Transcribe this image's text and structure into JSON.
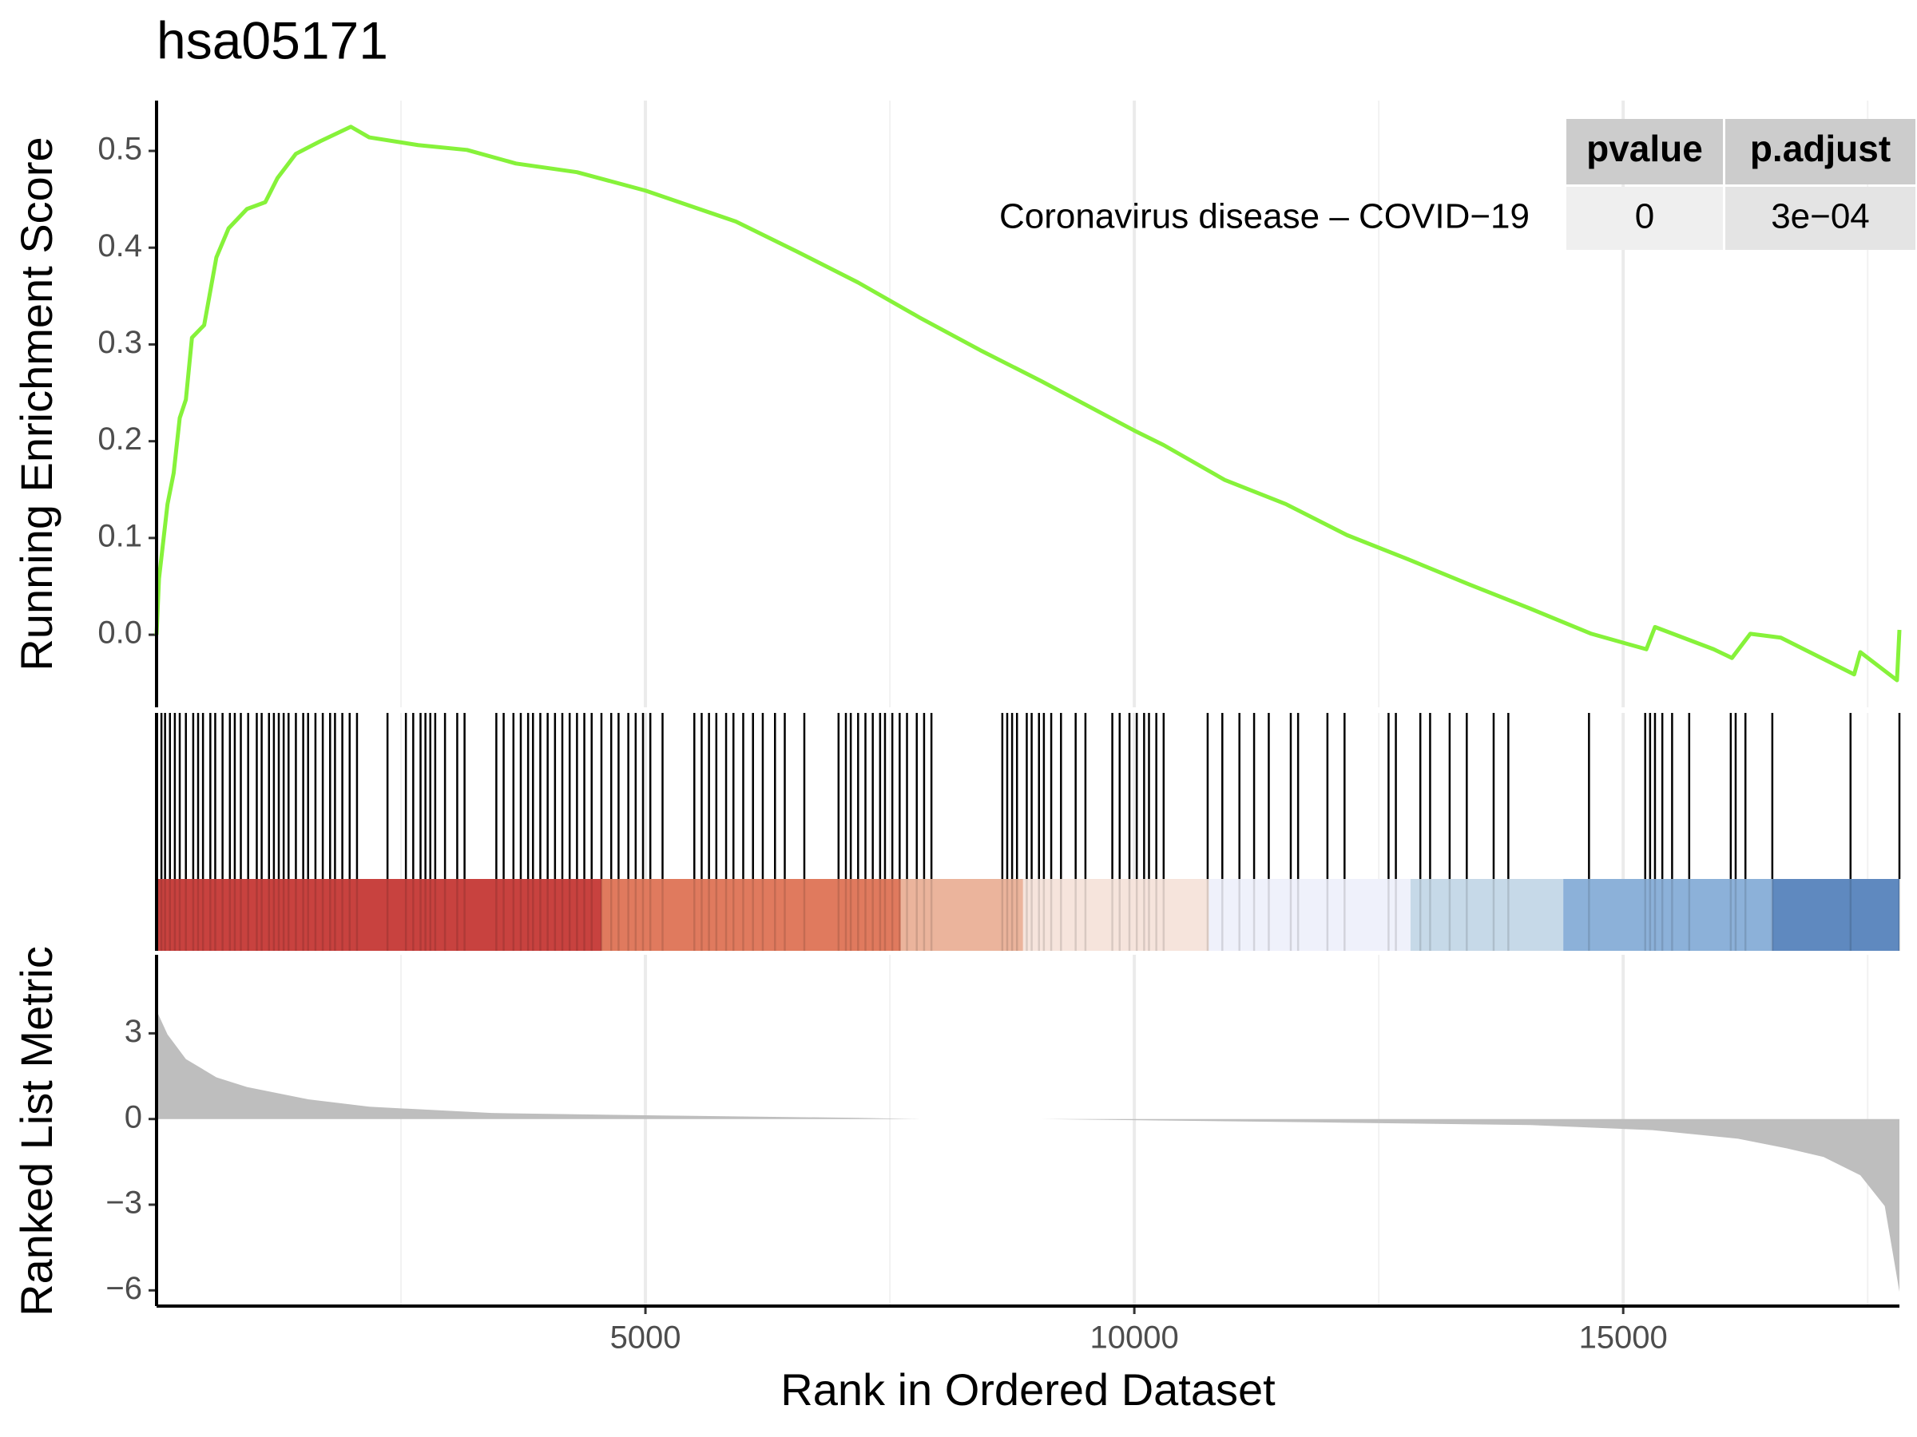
{
  "chart_data": [
    {
      "type": "line",
      "title": "hsa05171",
      "ylabel": "Running Enrichment Score",
      "x": [
        0,
        25,
        112,
        175,
        237,
        300,
        362,
        487,
        612,
        737,
        925,
        1112,
        1237,
        1425,
        1675,
        1987,
        2175,
        2675,
        3175,
        3675,
        4300,
        5000,
        5925,
        6550,
        7175,
        7800,
        8425,
        9050,
        10000,
        10300,
        10925,
        11550,
        12175,
        12800,
        13425,
        14050,
        14675,
        15237,
        15325,
        15925,
        16112,
        16300,
        16612,
        17362,
        17425,
        17800,
        17825
      ],
      "series": [
        {
          "name": "Coronavirus disease – COVID−19",
          "color": "#86f23a",
          "values": [
            0,
            0.058,
            0.135,
            0.167,
            0.224,
            0.243,
            0.307,
            0.32,
            0.39,
            0.42,
            0.44,
            0.447,
            0.472,
            0.497,
            0.51,
            0.525,
            0.514,
            0.506,
            0.501,
            0.487,
            0.478,
            0.459,
            0.427,
            0.396,
            0.364,
            0.328,
            0.294,
            0.262,
            0.211,
            0.196,
            0.16,
            0.135,
            0.103,
            0.078,
            0.052,
            0.027,
            0.001,
            -0.015,
            0.008,
            -0.015,
            -0.024,
            0.001,
            -0.003,
            -0.041,
            -0.018,
            -0.047,
            0.005
          ]
        }
      ],
      "xlim": [
        0,
        17825
      ],
      "xticks": [
        5000,
        10000,
        15000
      ],
      "xminorticks": [
        2500,
        7500,
        12500,
        17500
      ],
      "ylim": [
        -0.075,
        0.552
      ],
      "yticks": [
        {
          "value": 0,
          "label": "0.0"
        },
        0.1,
        0.2,
        0.3,
        0.4,
        0.5
      ],
      "grid": true,
      "table": {
        "columns": [
          "pvalue",
          "p.adjust"
        ],
        "rows": [
          [
            "0",
            "3e−04"
          ]
        ]
      }
    },
    {
      "type": "rug",
      "color": "#000000",
      "xlim": [
        0,
        17825
      ],
      "xticks": [
        5000,
        10000,
        15000
      ],
      "xminorticks": [
        2500,
        7500,
        12500,
        17500
      ],
      "grid": true,
      "hits": [
        50,
        87,
        137,
        187,
        237,
        300,
        375,
        425,
        475,
        550,
        600,
        675,
        750,
        800,
        862,
        937,
        1025,
        1075,
        1150,
        1200,
        1250,
        1300,
        1350,
        1425,
        1500,
        1550,
        1625,
        1700,
        1775,
        1825,
        1900,
        1975,
        2050,
        2362,
        2550,
        2625,
        2700,
        2750,
        2800,
        2850,
        2950,
        3075,
        3150,
        3475,
        3550,
        3650,
        3725,
        3800,
        3850,
        3925,
        4000,
        4075,
        4150,
        4225,
        4300,
        4375,
        4450,
        4550,
        4650,
        4725,
        4825,
        4900,
        4975,
        5050,
        5175,
        5500,
        5575,
        5650,
        5725,
        5825,
        5900,
        6000,
        6100,
        6200,
        6325,
        6425,
        6625,
        6975,
        7050,
        7100,
        7175,
        7250,
        7325,
        7400,
        7450,
        7525,
        7600,
        7675,
        7775,
        7850,
        7925,
        8650,
        8700,
        8750,
        8800,
        8900,
        8950,
        9025,
        9075,
        9150,
        9250,
        9400,
        9500,
        9775,
        9850,
        9950,
        10025,
        10100,
        10150,
        10225,
        10300,
        10750,
        10900,
        11075,
        11225,
        11375,
        11600,
        11675,
        11975,
        12150,
        12600,
        12675,
        12925,
        13025,
        13225,
        13400,
        13675,
        13825,
        14650,
        15225,
        15275,
        15325,
        15400,
        15500,
        15675,
        16100,
        16150,
        16250,
        16525,
        17325,
        17825
      ],
      "band": {
        "bins": [
          0,
          4550,
          7612,
          8862,
          10762,
          12825,
          14387,
          16525,
          17825
        ],
        "colors": [
          "#c8423f",
          "#e07a5e",
          "#ebb49c",
          "#f6e4dc",
          "#eff1fb",
          "#c6d9e8",
          "#8cb1d9",
          "#5f89bf"
        ]
      }
    },
    {
      "type": "area",
      "ylabel": "Ranked List Metric",
      "xlabel": "Rank in Ordered Dataset",
      "color": "#bebebe",
      "x": [
        0,
        112,
        300,
        612,
        925,
        1550,
        2175,
        3425,
        5000,
        7175,
        7800,
        9050,
        10000,
        12175,
        14050,
        15300,
        16175,
        16675,
        17050,
        17425,
        17675,
        17825
      ],
      "values": [
        3.8,
        2.96,
        2.1,
        1.46,
        1.12,
        0.69,
        0.43,
        0.21,
        0.13,
        0.04,
        0,
        0,
        -0.04,
        -0.13,
        -0.21,
        -0.39,
        -0.69,
        -1.03,
        -1.33,
        -1.97,
        -3.05,
        -6.05
      ],
      "xlim": [
        0,
        17825
      ],
      "xticks": [
        5000,
        10000,
        15000
      ],
      "xminorticks": [
        2500,
        7500,
        12500,
        17500
      ],
      "ylim": [
        -6.55,
        5.75
      ],
      "yticks": [
        3,
        0,
        {
          "value": -3,
          "label": "−3"
        },
        {
          "value": -6,
          "label": "−6"
        }
      ],
      "grid": true
    }
  ]
}
